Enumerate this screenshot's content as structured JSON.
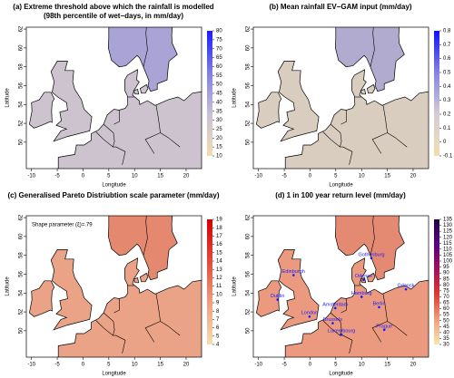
{
  "chart_data": [
    {
      "type": "map",
      "title": [
        "(a) Extreme threshold above which the rainfall is modelled",
        "(98th percentile of wet−days, in mm/day)"
      ],
      "xlabel": "Longitude",
      "ylabel": "Latitude",
      "xlim": [
        -11,
        23
      ],
      "ylim": [
        47.2,
        62.2
      ],
      "xticks": [
        -10,
        -5,
        0,
        5,
        10,
        15,
        20
      ],
      "yticks": [
        50,
        52,
        54,
        56,
        58,
        60,
        62
      ],
      "land_color": "#cdc3cf",
      "north_color": "#a9a3d6",
      "colorbar": {
        "lim": [
          10,
          80
        ],
        "ticks": [
          10,
          15,
          20,
          25,
          30,
          35,
          40,
          45,
          50,
          55,
          60,
          65,
          70,
          75,
          80
        ],
        "colors": [
          "#f2ddb0",
          "#c9c0d6",
          "#7f7fe0",
          "#1a1aff"
        ]
      }
    },
    {
      "type": "map",
      "title": [
        "(b) Mean rainfall EV−GAM input (mm/day)"
      ],
      "xlabel": "Longitude",
      "ylabel": "Latitude",
      "xlim": [
        -11,
        23
      ],
      "ylim": [
        47.2,
        62.2
      ],
      "xticks": [
        -10,
        -5,
        0,
        5,
        10,
        15,
        20
      ],
      "yticks": [
        50,
        52,
        54,
        56,
        58,
        60,
        62
      ],
      "land_color": "#d9cdbf",
      "north_color": "#b2abd0",
      "colorbar": {
        "lim": [
          -0.1,
          0.8
        ],
        "ticks": [
          -0.1,
          0,
          0.1,
          0.2,
          0.3,
          0.4,
          0.5,
          0.6,
          0.7,
          0.8
        ],
        "colors": [
          "#f2ddb0",
          "#d4cdd6",
          "#8484e0",
          "#1010ff"
        ]
      }
    },
    {
      "type": "map",
      "title": [
        "(c) Generalised Pareto Distriubtion scale parameter (mm/day)"
      ],
      "xlabel": "Longitude",
      "ylabel": "Latitude",
      "xlim": [
        -11,
        23
      ],
      "ylim": [
        47.2,
        62.2
      ],
      "xticks": [
        -10,
        -5,
        0,
        5,
        10,
        15,
        20
      ],
      "yticks": [
        50,
        52,
        54,
        56,
        58,
        60,
        62
      ],
      "land_color": "#eba387",
      "north_color": "#e48870",
      "annotation": "Shape parameter (ξ)=.79",
      "colorbar": {
        "lim": [
          4,
          19
        ],
        "ticks": [
          4,
          5,
          6,
          7,
          8,
          9,
          10,
          11,
          12,
          13,
          14,
          15,
          16,
          17,
          18,
          19
        ],
        "colors": [
          "#f5deb0",
          "#eea080",
          "#e24a3a",
          "#d40000"
        ]
      }
    },
    {
      "type": "map",
      "title": [
        "(d) 1 in 100 year return level (mm/day)"
      ],
      "xlabel": "Longitude",
      "ylabel": "Latitude",
      "xlim": [
        -11,
        23
      ],
      "ylim": [
        47.2,
        62.2
      ],
      "xticks": [
        -10,
        -5,
        0,
        5,
        10,
        15,
        20
      ],
      "yticks": [
        50,
        52,
        54,
        56,
        58,
        60,
        62
      ],
      "land_color": "#eb9a80",
      "north_color": "#e58a72",
      "cities": {
        "names": [
          "Gothenburg",
          "Edinburgh",
          "Odense",
          "Dublin",
          "Hamburg",
          "Gdansk",
          "Amsterdam",
          "London",
          "Brussels",
          "Luxembourg",
          "Berlin",
          "Prague"
        ],
        "lon": [
          11.9,
          -3.2,
          10.4,
          -6.3,
          10,
          18.6,
          4.9,
          -0.1,
          4.4,
          6.1,
          13.4,
          14.4
        ],
        "lat": [
          57.7,
          55.9,
          55.4,
          53.3,
          53.6,
          54.4,
          52.4,
          51.5,
          50.8,
          49.6,
          52.5,
          50.1
        ]
      },
      "colorbar": {
        "lim": [
          30,
          135
        ],
        "ticks": [
          30,
          35,
          40,
          45,
          50,
          55,
          60,
          65,
          70,
          75,
          80,
          85,
          90,
          95,
          100,
          105,
          110,
          115,
          120,
          125,
          130,
          135
        ],
        "colors": [
          "#f7e6b0",
          "#eea080",
          "#dd3a30",
          "#a01060",
          "#5a0080",
          "#200040"
        ]
      }
    }
  ]
}
